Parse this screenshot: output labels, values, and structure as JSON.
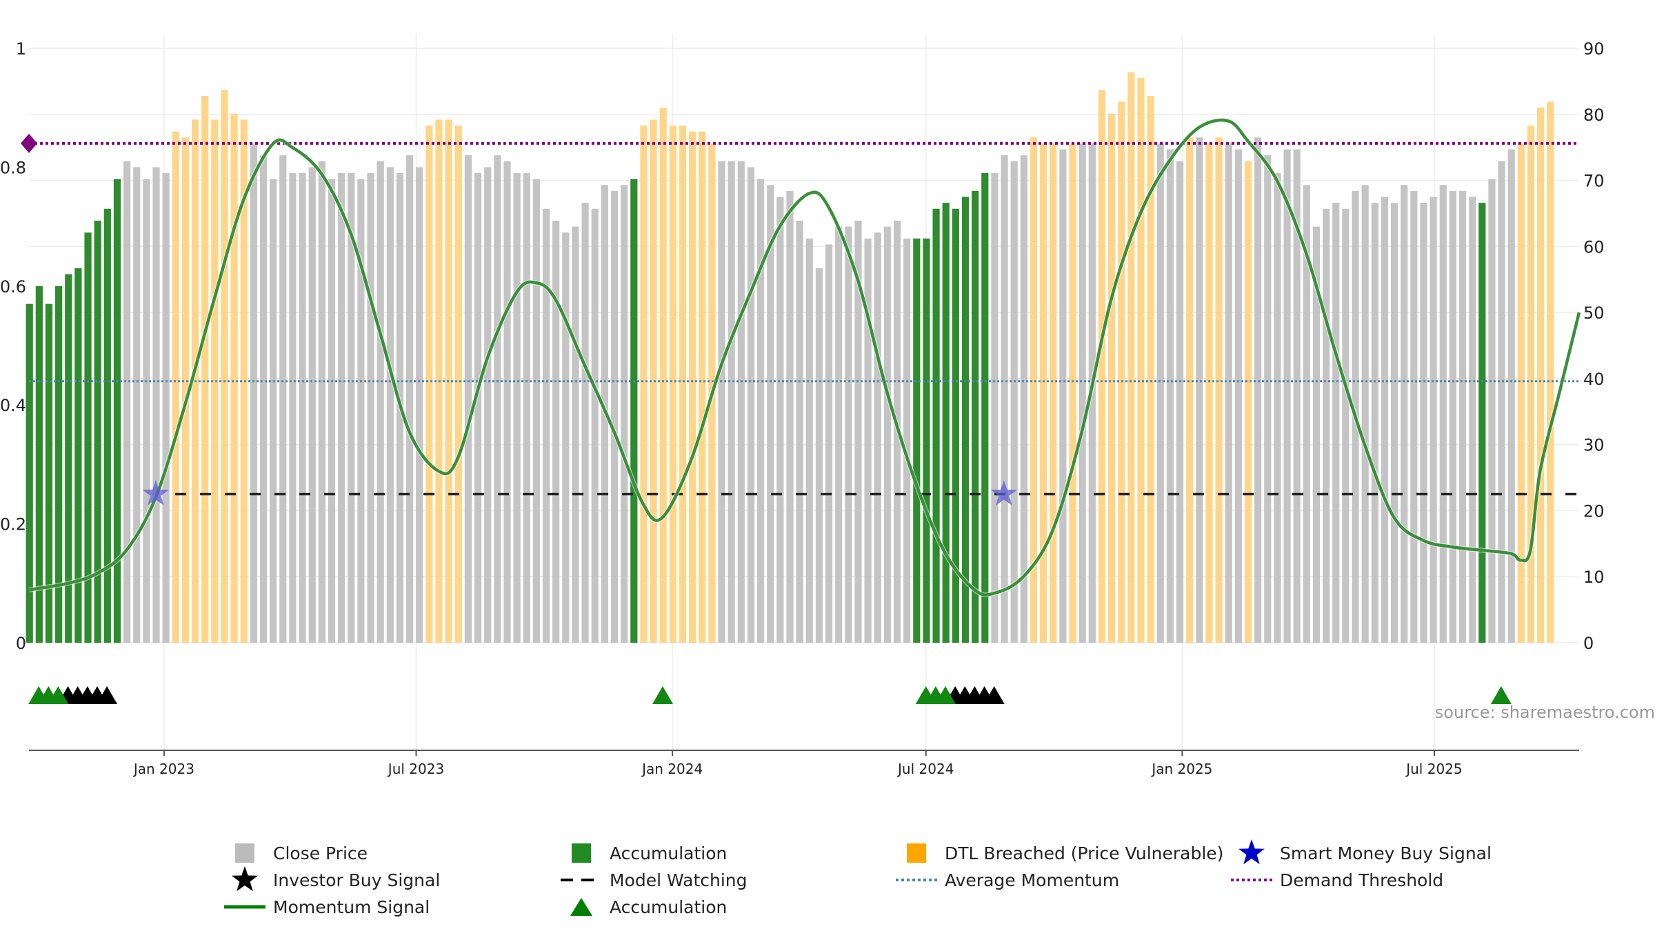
{
  "chart_data": {
    "type": "bar",
    "left_axis": {
      "ylim": [
        0,
        1
      ],
      "tick_labels": [
        "0",
        "0.2",
        "0.4",
        "0.6",
        "0.8",
        "1"
      ],
      "tick_values": [
        0,
        0.2,
        0.4,
        0.6,
        0.8,
        1
      ]
    },
    "right_axis": {
      "ylim": [
        0,
        90
      ],
      "tick_labels": [
        "0",
        "10",
        "20",
        "30",
        "40",
        "50",
        "60",
        "70",
        "80",
        "90"
      ],
      "tick_values": [
        0,
        10,
        20,
        30,
        40,
        50,
        60,
        70,
        80,
        90
      ]
    },
    "x_axis": {
      "start": "2022-09-26",
      "end": "2025-10-13",
      "tick_labels": [
        "Jan 2023",
        "Jul 2023",
        "Jan 2024",
        "Jul 2024",
        "Jan 2025",
        "Jul 2025"
      ],
      "tick_dates": [
        "2023-01-01",
        "2023-07-01",
        "2024-01-01",
        "2024-07-01",
        "2025-01-01",
        "2025-07-01"
      ]
    },
    "grid": true,
    "bars": {
      "start_week": "2022-09-26",
      "interval": "weekly",
      "values": [
        0.57,
        0.6,
        0.57,
        0.6,
        0.62,
        0.63,
        0.69,
        0.71,
        0.73,
        0.78,
        0.81,
        0.8,
        0.78,
        0.8,
        0.79,
        0.86,
        0.85,
        0.88,
        0.92,
        0.88,
        0.93,
        0.89,
        0.88,
        0.84,
        0.82,
        0.78,
        0.82,
        0.79,
        0.79,
        0.8,
        0.81,
        0.78,
        0.79,
        0.79,
        0.78,
        0.79,
        0.81,
        0.8,
        0.79,
        0.82,
        0.8,
        0.87,
        0.88,
        0.88,
        0.87,
        0.82,
        0.79,
        0.8,
        0.82,
        0.81,
        0.79,
        0.79,
        0.78,
        0.73,
        0.71,
        0.69,
        0.7,
        0.74,
        0.73,
        0.77,
        0.76,
        0.77,
        0.78,
        0.87,
        0.88,
        0.9,
        0.87,
        0.87,
        0.86,
        0.86,
        0.84,
        0.81,
        0.81,
        0.81,
        0.8,
        0.78,
        0.77,
        0.75,
        0.76,
        0.71,
        0.68,
        0.63,
        0.67,
        0.7,
        0.7,
        0.71,
        0.68,
        0.69,
        0.7,
        0.71,
        0.68,
        0.68,
        0.68,
        0.73,
        0.74,
        0.73,
        0.75,
        0.76,
        0.79,
        0.79,
        0.82,
        0.81,
        0.82,
        0.85,
        0.84,
        0.84,
        0.83,
        0.84,
        0.84,
        0.84,
        0.93,
        0.89,
        0.91,
        0.96,
        0.95,
        0.92,
        0.84,
        0.83,
        0.81,
        0.85,
        0.85,
        0.84,
        0.85,
        0.84,
        0.83,
        0.81,
        0.85,
        0.82,
        0.79,
        0.83,
        0.83,
        0.77,
        0.7,
        0.73,
        0.74,
        0.73,
        0.76,
        0.77,
        0.74,
        0.75,
        0.74,
        0.77,
        0.76,
        0.74,
        0.75,
        0.77,
        0.76,
        0.76,
        0.75,
        0.74,
        0.78,
        0.81,
        0.83,
        0.84,
        0.87,
        0.9,
        0.91
      ],
      "category": [
        "acc",
        "acc",
        "acc",
        "acc",
        "acc",
        "acc",
        "acc",
        "acc",
        "acc",
        "acc",
        "close",
        "close",
        "close",
        "close",
        "close",
        "dtl",
        "dtl",
        "dtl",
        "dtl",
        "dtl",
        "dtl",
        "dtl",
        "dtl",
        "close",
        "close",
        "close",
        "close",
        "close",
        "close",
        "close",
        "close",
        "close",
        "close",
        "close",
        "close",
        "close",
        "close",
        "close",
        "close",
        "close",
        "close",
        "dtl",
        "dtl",
        "dtl",
        "dtl",
        "close",
        "close",
        "close",
        "close",
        "close",
        "close",
        "close",
        "close",
        "close",
        "close",
        "close",
        "close",
        "close",
        "close",
        "close",
        "close",
        "close",
        "acc",
        "dtl",
        "dtl",
        "dtl",
        "dtl",
        "dtl",
        "dtl",
        "dtl",
        "dtl",
        "close",
        "close",
        "close",
        "close",
        "close",
        "close",
        "close",
        "close",
        "close",
        "close",
        "close",
        "close",
        "close",
        "close",
        "close",
        "close",
        "close",
        "close",
        "close",
        "close",
        "acc",
        "acc",
        "acc",
        "acc",
        "acc",
        "acc",
        "acc",
        "acc",
        "close",
        "close",
        "close",
        "close",
        "dtl",
        "dtl",
        "dtl",
        "close",
        "dtl",
        "close",
        "close",
        "dtl",
        "dtl",
        "dtl",
        "dtl",
        "dtl",
        "dtl",
        "close",
        "close",
        "close",
        "dtl",
        "close",
        "dtl",
        "dtl",
        "close",
        "close",
        "dtl",
        "close",
        "close",
        "close",
        "close",
        "close",
        "close",
        "close",
        "close",
        "close",
        "close",
        "close",
        "close",
        "close",
        "close",
        "close",
        "close",
        "close",
        "close",
        "close",
        "close",
        "close",
        "close",
        "close",
        "acc",
        "close",
        "close",
        "close",
        "dtl",
        "dtl",
        "dtl",
        "dtl"
      ]
    },
    "momentum": {
      "axis": "right",
      "points": [
        [
          "2022-09-26",
          8
        ],
        [
          "2022-10-24",
          9
        ],
        [
          "2022-11-14",
          10.5
        ],
        [
          "2022-12-05",
          14
        ],
        [
          "2022-12-26",
          22
        ],
        [
          "2023-01-16",
          36
        ],
        [
          "2023-02-06",
          52
        ],
        [
          "2023-02-27",
          67
        ],
        [
          "2023-03-20",
          75.5
        ],
        [
          "2023-04-03",
          75
        ],
        [
          "2023-04-24",
          71
        ],
        [
          "2023-05-15",
          62
        ],
        [
          "2023-06-05",
          47
        ],
        [
          "2023-06-26",
          32
        ],
        [
          "2023-07-17",
          26
        ],
        [
          "2023-07-31",
          28
        ],
        [
          "2023-08-21",
          43
        ],
        [
          "2023-09-11",
          53
        ],
        [
          "2023-09-25",
          54.5
        ],
        [
          "2023-10-09",
          52
        ],
        [
          "2023-10-30",
          42
        ],
        [
          "2023-11-20",
          32
        ],
        [
          "2023-12-11",
          21
        ],
        [
          "2023-12-25",
          19
        ],
        [
          "2024-01-15",
          28
        ],
        [
          "2024-02-05",
          42
        ],
        [
          "2024-02-26",
          53
        ],
        [
          "2024-03-18",
          63
        ],
        [
          "2024-04-08",
          68
        ],
        [
          "2024-04-22",
          66
        ],
        [
          "2024-05-13",
          55
        ],
        [
          "2024-06-03",
          38
        ],
        [
          "2024-06-24",
          24
        ],
        [
          "2024-07-15",
          13.5
        ],
        [
          "2024-08-05",
          8
        ],
        [
          "2024-08-19",
          7.5
        ],
        [
          "2024-09-09",
          10
        ],
        [
          "2024-09-30",
          17
        ],
        [
          "2024-10-21",
          32
        ],
        [
          "2024-11-11",
          52
        ],
        [
          "2024-12-02",
          65
        ],
        [
          "2024-12-23",
          73
        ],
        [
          "2025-01-13",
          78
        ],
        [
          "2025-02-03",
          79
        ],
        [
          "2025-02-17",
          76
        ],
        [
          "2025-03-10",
          70
        ],
        [
          "2025-03-31",
          59
        ],
        [
          "2025-04-21",
          44
        ],
        [
          "2025-05-12",
          30
        ],
        [
          "2025-06-02",
          19
        ],
        [
          "2025-06-23",
          15.5
        ],
        [
          "2025-07-14",
          14.5
        ],
        [
          "2025-08-04",
          14
        ],
        [
          "2025-08-25",
          13.5
        ],
        [
          "2025-09-01",
          12.5
        ],
        [
          "2025-09-08",
          14
        ],
        [
          "2025-09-15",
          26
        ],
        [
          "2025-09-29",
          38
        ],
        [
          "2025-10-13",
          50
        ]
      ]
    },
    "reference_lines": {
      "average_momentum": 0.44,
      "demand_threshold": 0.84,
      "model_watching": 0.25
    },
    "smart_money_buy_signals": [
      {
        "date": "2022-12-26",
        "value": 0.25
      },
      {
        "date": "2024-08-26",
        "value": 0.25
      }
    ],
    "accumulation_markers": [
      "2022-10-03",
      "2022-10-10",
      "2022-10-17",
      "2023-12-25",
      "2024-07-01",
      "2024-07-08",
      "2024-07-15",
      "2025-08-18"
    ],
    "investor_buy_markers": [
      "2022-10-24",
      "2022-10-31",
      "2022-11-07",
      "2022-11-14",
      "2022-11-21",
      "2024-07-22",
      "2024-07-29",
      "2024-08-05",
      "2024-08-12",
      "2024-08-19"
    ],
    "source_text": "source: sharemaestro.com",
    "legend": [
      {
        "label": "Close Price",
        "symbol": "square",
        "color": "#bbbbbb"
      },
      {
        "label": "Accumulation",
        "symbol": "square",
        "color": "#228B22"
      },
      {
        "label": "DTL Breached (Price Vulnerable)",
        "symbol": "square",
        "color": "#FFA500"
      },
      {
        "label": "Smart Money Buy Signal",
        "symbol": "star",
        "color": "#0000CD"
      },
      {
        "label": "Investor Buy Signal",
        "symbol": "star",
        "color": "#000000"
      },
      {
        "label": "Model Watching",
        "symbol": "dashed-line",
        "color": "#000000"
      },
      {
        "label": "Average Momentum",
        "symbol": "dotted-line",
        "color": "#4682B4"
      },
      {
        "label": "Demand Threshold",
        "symbol": "dotted-line",
        "color": "#800080"
      },
      {
        "label": "Momentum Signal",
        "symbol": "line",
        "color": "#008000"
      },
      {
        "label": "Accumulation",
        "symbol": "triangle",
        "color": "#008000"
      }
    ],
    "colors": {
      "close": "#c4c4c4",
      "acc": "#2e8b2e",
      "dtl": "#ffd58a",
      "momentum": "#3a8f3a",
      "momentum_high": "#6a9a1a",
      "avg_line": "#4e86ad",
      "demand_line": "#800080",
      "watch_line": "#222222",
      "star": "#5a5ad6"
    }
  }
}
